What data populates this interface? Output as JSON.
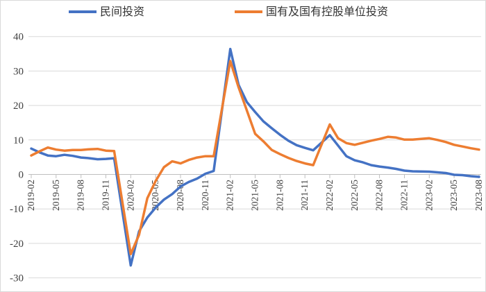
{
  "chart": {
    "background": "#ffffff",
    "border_color": "#d9d9d9",
    "gridline_color": "#d9d9d9",
    "axis_color": "#bfbfbf",
    "label_color": "#404040",
    "legend": [
      {
        "label": "民间投资",
        "color": "#4472C4"
      },
      {
        "label": "国有及国有控股单位投资",
        "color": "#ED7D31"
      }
    ],
    "y_axis": {
      "tick_labels": [
        "40",
        "30",
        "20",
        "10",
        "0",
        "-10",
        "-20",
        "-30"
      ],
      "tick_values": [
        40,
        30,
        20,
        10,
        0,
        -10,
        -20,
        -30
      ]
    },
    "x_axis": {
      "tick_labels": [
        "2019-02",
        "2019-05",
        "2019-08",
        "2019-11",
        "2020-02",
        "2020-05",
        "2020-08",
        "2020-11",
        "2021-02",
        "2021-05",
        "2021-08",
        "2021-11",
        "2022-02",
        "2022-05",
        "2022-08",
        "2022-11",
        "2023-02",
        "2023-05",
        "2023-08"
      ]
    }
  },
  "chart_data": {
    "type": "line",
    "x": [
      "2019-02",
      "2019-03",
      "2019-04",
      "2019-05",
      "2019-06",
      "2019-07",
      "2019-08",
      "2019-09",
      "2019-10",
      "2019-11",
      "2019-12",
      "2020-02",
      "2020-03",
      "2020-04",
      "2020-05",
      "2020-06",
      "2020-07",
      "2020-08",
      "2020-09",
      "2020-10",
      "2020-11",
      "2020-12",
      "2021-02",
      "2021-03",
      "2021-04",
      "2021-05",
      "2021-06",
      "2021-07",
      "2021-08",
      "2021-09",
      "2021-10",
      "2021-11",
      "2021-12",
      "2022-02",
      "2022-03",
      "2022-04",
      "2022-05",
      "2022-06",
      "2022-07",
      "2022-08",
      "2022-09",
      "2022-10",
      "2022-11",
      "2022-12",
      "2023-02",
      "2023-03",
      "2023-04",
      "2023-05",
      "2023-06",
      "2023-07",
      "2023-08"
    ],
    "series": [
      {
        "name": "民间投资",
        "color": "#4472C4",
        "values": [
          7.5,
          6.4,
          5.5,
          5.3,
          5.7,
          5.4,
          4.9,
          4.7,
          4.4,
          4.5,
          4.7,
          -26.4,
          -16.5,
          -12.5,
          -9.6,
          -7.3,
          -5.7,
          -3.5,
          -2.2,
          -1.2,
          0.2,
          1.0,
          36.4,
          26.0,
          21.0,
          18.1,
          15.4,
          13.4,
          11.5,
          9.8,
          8.5,
          7.7,
          7.0,
          11.4,
          8.4,
          5.3,
          4.1,
          3.5,
          2.7,
          2.3,
          2.0,
          1.6,
          1.1,
          0.9,
          0.8,
          0.6,
          0.4,
          -0.1,
          -0.2,
          -0.5,
          -0.7
        ]
      },
      {
        "name": "国有及国有控股单位投资",
        "color": "#ED7D31",
        "values": [
          5.5,
          6.7,
          7.8,
          7.2,
          6.9,
          7.1,
          7.1,
          7.3,
          7.4,
          6.9,
          6.8,
          -23.1,
          -17.5,
          -6.9,
          -1.9,
          2.1,
          3.8,
          3.2,
          4.2,
          4.9,
          5.3,
          5.3,
          32.9,
          25.3,
          18.6,
          11.8,
          9.6,
          7.1,
          5.9,
          4.8,
          3.9,
          3.2,
          2.7,
          14.5,
          10.5,
          9.1,
          8.6,
          9.2,
          9.8,
          10.3,
          10.9,
          10.7,
          10.1,
          10.1,
          10.5,
          10.0,
          9.4,
          8.6,
          8.1,
          7.6,
          7.2
        ]
      }
    ],
    "ylim": [
      -30,
      40
    ],
    "xlabel": "",
    "ylabel": "",
    "grid": "horizontal",
    "legend_position": "top-center"
  }
}
